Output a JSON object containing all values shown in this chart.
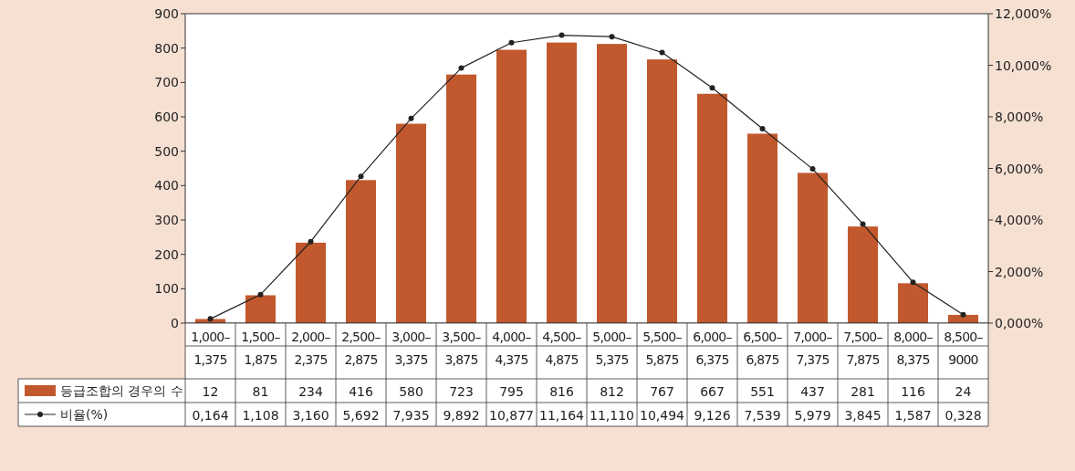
{
  "chart_data": {
    "type": "bar",
    "categories": [
      "1,000–\n1,375",
      "1,500–\n1,875",
      "2,000–\n2,375",
      "2,500–\n2,875",
      "3,000–\n3,375",
      "3,500–\n3,875",
      "4,000–\n4,375",
      "4,500–\n4,875",
      "5,000–\n5,375",
      "5,500–\n5,875",
      "6,000–\n6,375",
      "6,500–\n6,875",
      "7,000–\n7,375",
      "7,500–\n7,875",
      "8,000–\n8,375",
      "8,500–\n9000"
    ],
    "series": [
      {
        "name": "등급조합의 경우의 수",
        "color": "#c2582d",
        "values": [
          12,
          81,
          234,
          416,
          580,
          723,
          795,
          816,
          812,
          767,
          667,
          551,
          437,
          281,
          116,
          24
        ],
        "value_labels": [
          "12",
          "81",
          "234",
          "416",
          "580",
          "723",
          "795",
          "816",
          "812",
          "767",
          "667",
          "551",
          "437",
          "281",
          "116",
          "24"
        ]
      },
      {
        "name": "비율(%)",
        "type": "line",
        "axis": "y2",
        "color": "#222222",
        "marker": "circle",
        "values": [
          0.164,
          1.108,
          3.16,
          5.692,
          7.935,
          9.892,
          10.877,
          11.164,
          11.11,
          10.494,
          9.126,
          7.539,
          5.979,
          3.845,
          1.587,
          0.328
        ],
        "value_labels": [
          "0,164",
          "1,108",
          "3,160",
          "5,692",
          "7,935",
          "9,892",
          "10,877",
          "11,164",
          "11,110",
          "10,494",
          "9,126",
          "7,539",
          "5,979",
          "3,845",
          "1,587",
          "0,328"
        ]
      }
    ],
    "ylim": [
      0,
      900
    ],
    "yticks": [
      0,
      100,
      200,
      300,
      400,
      500,
      600,
      700,
      800,
      900
    ],
    "y2lim": [
      0,
      12
    ],
    "y2ticks": [
      {
        "value": 0,
        "label": "0,000%"
      },
      {
        "value": 2,
        "label": "2,000%"
      },
      {
        "value": 4,
        "label": "4,000%"
      },
      {
        "value": 6,
        "label": "6,000%"
      },
      {
        "value": 8,
        "label": "8,000%"
      },
      {
        "value": 10,
        "label": "10,000%"
      },
      {
        "value": 12,
        "label": "12,000%"
      }
    ],
    "legend": "left"
  }
}
